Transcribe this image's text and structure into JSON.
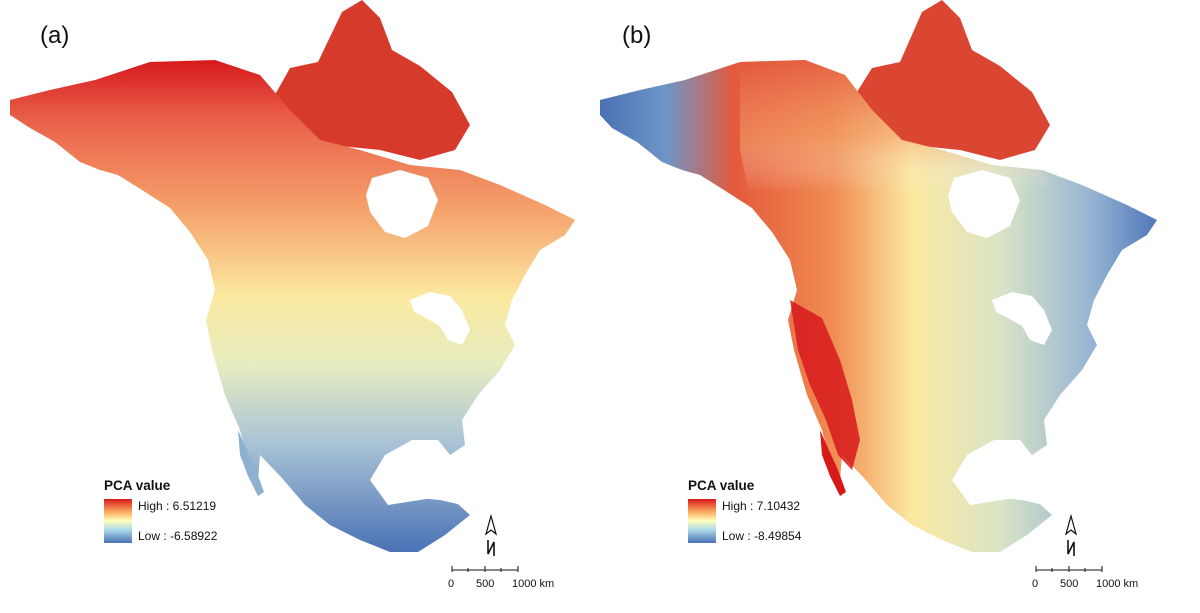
{
  "panels": [
    {
      "label": "(a)",
      "legend": {
        "title": "PCA value",
        "high": "High : 6.51219",
        "low": "Low : -6.58922"
      },
      "scale": {
        "ticks": [
          "0",
          "500",
          "1000 km"
        ]
      }
    },
    {
      "label": "(b)",
      "legend": {
        "title": "PCA value",
        "high": "High : 7.10432",
        "low": "Low : -8.49854"
      },
      "scale": {
        "ticks": [
          "0",
          "500",
          "1000 km"
        ]
      }
    }
  ],
  "colors": {
    "high": "#d7191c",
    "mid_high": "#fdae61",
    "mid": "#ffffbf",
    "mid_low": "#abd9e9",
    "low": "#4a72b5",
    "water": "#ffffff"
  }
}
